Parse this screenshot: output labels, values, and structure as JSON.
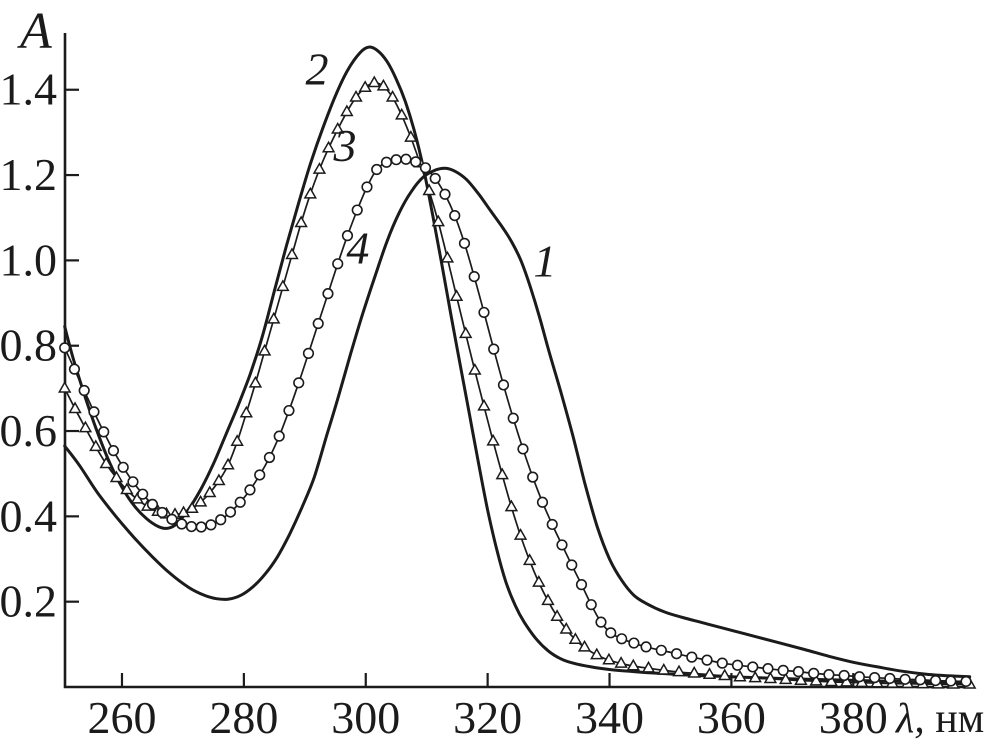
{
  "figure": {
    "background": "#ffffff",
    "ink_color": "#1b1b1b",
    "ylabel": "A",
    "xlabel_symbol": "λ,",
    "xlabel_unit": " нм"
  },
  "chart_data": {
    "type": "line",
    "title": "",
    "xlabel": "λ, нм",
    "ylabel": "A",
    "xlim": [
      250.65,
      399.15
    ],
    "ylim": [
      0,
      1.533
    ],
    "grid": false,
    "legend_position": "none (curves numbered inline)",
    "xticks": [
      260,
      280,
      300,
      320,
      340,
      360,
      380
    ],
    "xtick_labels": [
      "260",
      "280",
      "300",
      "320",
      "340",
      "360",
      "380"
    ],
    "yticks": [
      0.2,
      0.4,
      0.6,
      0.8,
      1.0,
      1.2,
      1.4
    ],
    "ytick_labels": [
      "0.2",
      "0.4",
      "0.6",
      "0.8",
      "1.0",
      "1.2",
      "1.4"
    ],
    "annotations": [
      {
        "label": "1",
        "x": 329.4,
        "y": 1.0
      },
      {
        "label": "2",
        "x": 292.0,
        "y": 1.45
      },
      {
        "label": "3",
        "x": 296.6,
        "y": 1.27
      },
      {
        "label": "4",
        "x": 298.7,
        "y": 1.03
      }
    ],
    "series": [
      {
        "name": "1",
        "style": "solid",
        "marker": "none",
        "peak": {
          "x": 313,
          "y": 1.22
        },
        "points": [
          [
            250.6,
            0.565
          ],
          [
            253,
            0.52
          ],
          [
            256,
            0.455
          ],
          [
            259,
            0.4
          ],
          [
            262,
            0.35
          ],
          [
            265,
            0.305
          ],
          [
            268,
            0.265
          ],
          [
            271,
            0.233
          ],
          [
            273.5,
            0.215
          ],
          [
            275.5,
            0.207
          ],
          [
            277.5,
            0.206
          ],
          [
            279.5,
            0.215
          ],
          [
            281.5,
            0.235
          ],
          [
            283.5,
            0.265
          ],
          [
            285.5,
            0.305
          ],
          [
            287.5,
            0.358
          ],
          [
            289.5,
            0.42
          ],
          [
            291.5,
            0.49
          ],
          [
            293.5,
            0.585
          ],
          [
            295.5,
            0.68
          ],
          [
            297.5,
            0.78
          ],
          [
            299.5,
            0.875
          ],
          [
            301.5,
            0.962
          ],
          [
            303.5,
            1.045
          ],
          [
            305.5,
            1.112
          ],
          [
            307.5,
            1.162
          ],
          [
            309.5,
            1.196
          ],
          [
            311.5,
            1.212
          ],
          [
            313,
            1.216
          ],
          [
            314.5,
            1.21
          ],
          [
            316.5,
            1.19
          ],
          [
            318.5,
            1.156
          ],
          [
            320.5,
            1.116
          ],
          [
            322.5,
            1.076
          ],
          [
            324,
            1.042
          ],
          [
            325.5,
            0.998
          ],
          [
            327,
            0.938
          ],
          [
            328.5,
            0.868
          ],
          [
            330,
            0.79
          ],
          [
            332,
            0.692
          ],
          [
            334,
            0.588
          ],
          [
            336,
            0.475
          ],
          [
            338,
            0.375
          ],
          [
            340,
            0.3
          ],
          [
            342,
            0.25
          ],
          [
            344,
            0.215
          ],
          [
            346,
            0.196
          ],
          [
            349,
            0.176
          ],
          [
            352,
            0.163
          ],
          [
            356,
            0.148
          ],
          [
            360,
            0.133
          ],
          [
            364,
            0.118
          ],
          [
            368,
            0.103
          ],
          [
            372,
            0.088
          ],
          [
            376,
            0.072
          ],
          [
            380,
            0.058
          ],
          [
            384,
            0.047
          ],
          [
            388,
            0.037
          ],
          [
            392,
            0.03
          ],
          [
            396,
            0.026
          ],
          [
            399.1,
            0.024
          ]
        ]
      },
      {
        "name": "2",
        "style": "solid",
        "marker": "none",
        "peak": {
          "x": 300.5,
          "y": 1.5
        },
        "points": [
          [
            250.6,
            0.845
          ],
          [
            252,
            0.77
          ],
          [
            254,
            0.678
          ],
          [
            256,
            0.596
          ],
          [
            258,
            0.525
          ],
          [
            260,
            0.468
          ],
          [
            262,
            0.425
          ],
          [
            264,
            0.395
          ],
          [
            266,
            0.376
          ],
          [
            267.5,
            0.372
          ],
          [
            269,
            0.383
          ],
          [
            271,
            0.418
          ],
          [
            273,
            0.465
          ],
          [
            275,
            0.523
          ],
          [
            277,
            0.59
          ],
          [
            279,
            0.658
          ],
          [
            281,
            0.732
          ],
          [
            283,
            0.82
          ],
          [
            285,
            0.928
          ],
          [
            287,
            1.035
          ],
          [
            289,
            1.135
          ],
          [
            291,
            1.23
          ],
          [
            293,
            1.312
          ],
          [
            295,
            1.385
          ],
          [
            297,
            1.445
          ],
          [
            299,
            1.486
          ],
          [
            300.5,
            1.5
          ],
          [
            302,
            1.491
          ],
          [
            303.5,
            1.466
          ],
          [
            305,
            1.425
          ],
          [
            306.5,
            1.372
          ],
          [
            308,
            1.302
          ],
          [
            309.5,
            1.214
          ],
          [
            311,
            1.105
          ],
          [
            312.5,
            0.99
          ],
          [
            314,
            0.87
          ],
          [
            315.5,
            0.755
          ],
          [
            317,
            0.64
          ],
          [
            318.5,
            0.525
          ],
          [
            320,
            0.415
          ],
          [
            321.5,
            0.322
          ],
          [
            323,
            0.246
          ],
          [
            324.5,
            0.192
          ],
          [
            326,
            0.152
          ],
          [
            328,
            0.112
          ],
          [
            330,
            0.084
          ],
          [
            332,
            0.066
          ],
          [
            334,
            0.056
          ],
          [
            337,
            0.047
          ],
          [
            340,
            0.041
          ],
          [
            344,
            0.036
          ],
          [
            348,
            0.032
          ],
          [
            353,
            0.028
          ],
          [
            358,
            0.025
          ],
          [
            364,
            0.022
          ],
          [
            370,
            0.019
          ],
          [
            376,
            0.017
          ],
          [
            382,
            0.015
          ],
          [
            388,
            0.013
          ],
          [
            394,
            0.011
          ],
          [
            399.1,
            0.01
          ]
        ]
      },
      {
        "name": "3",
        "style": "line+markers",
        "marker": "triangle",
        "peak": {
          "x": 301.5,
          "y": 1.42
        },
        "points": [
          [
            250.6,
            0.7
          ],
          [
            252.3,
            0.652
          ],
          [
            254,
            0.607
          ],
          [
            255.7,
            0.563
          ],
          [
            257.4,
            0.523
          ],
          [
            259.1,
            0.49
          ],
          [
            260.8,
            0.462
          ],
          [
            262.5,
            0.44
          ],
          [
            264.2,
            0.423
          ],
          [
            265.9,
            0.411
          ],
          [
            267.3,
            0.405
          ],
          [
            268.7,
            0.404
          ],
          [
            270.1,
            0.408
          ],
          [
            271.5,
            0.418
          ],
          [
            272.9,
            0.433
          ],
          [
            274.4,
            0.455
          ],
          [
            275.9,
            0.483
          ],
          [
            277.4,
            0.52
          ],
          [
            278.9,
            0.575
          ],
          [
            280.4,
            0.642
          ],
          [
            281.9,
            0.712
          ],
          [
            283.4,
            0.787
          ],
          [
            284.9,
            0.862
          ],
          [
            286.4,
            0.938
          ],
          [
            287.9,
            1.013
          ],
          [
            289.4,
            1.088
          ],
          [
            290.9,
            1.155
          ],
          [
            292.4,
            1.213
          ],
          [
            293.9,
            1.263
          ],
          [
            295.4,
            1.307
          ],
          [
            296.9,
            1.348
          ],
          [
            298.4,
            1.382
          ],
          [
            299.9,
            1.405
          ],
          [
            301.4,
            1.416
          ],
          [
            302.9,
            1.408
          ],
          [
            304.4,
            1.382
          ],
          [
            305.9,
            1.34
          ],
          [
            307.4,
            1.288
          ],
          [
            308.9,
            1.228
          ],
          [
            310.4,
            1.163
          ],
          [
            311.9,
            1.09
          ],
          [
            313.4,
            1.005
          ],
          [
            314.9,
            0.915
          ],
          [
            316.4,
            0.828
          ],
          [
            317.9,
            0.742
          ],
          [
            319.4,
            0.658
          ],
          [
            320.9,
            0.576
          ],
          [
            322.4,
            0.497
          ],
          [
            323.9,
            0.422
          ],
          [
            325.4,
            0.355
          ],
          [
            326.9,
            0.296
          ],
          [
            328.4,
            0.245
          ],
          [
            329.9,
            0.202
          ],
          [
            331.4,
            0.165
          ],
          [
            332.9,
            0.135
          ],
          [
            334.4,
            0.111
          ],
          [
            335.9,
            0.093
          ],
          [
            337.9,
            0.075
          ],
          [
            339.9,
            0.063
          ],
          [
            341.9,
            0.055
          ],
          [
            343.9,
            0.049
          ],
          [
            346.4,
            0.044
          ],
          [
            348.9,
            0.039
          ],
          [
            351.4,
            0.035
          ],
          [
            353.9,
            0.032
          ],
          [
            356.4,
            0.029
          ],
          [
            358.9,
            0.026
          ],
          [
            361.4,
            0.023
          ],
          [
            363.9,
            0.021
          ],
          [
            366.4,
            0.019
          ],
          [
            368.9,
            0.017
          ],
          [
            371.4,
            0.015
          ],
          [
            373.9,
            0.0135
          ],
          [
            376.4,
            0.012
          ],
          [
            378.9,
            0.011
          ],
          [
            381.4,
            0.01
          ],
          [
            383.9,
            0.009
          ],
          [
            386.4,
            0.008
          ],
          [
            388.9,
            0.0075
          ],
          [
            391.4,
            0.007
          ],
          [
            393.9,
            0.0065
          ],
          [
            396.4,
            0.006
          ],
          [
            399.1,
            0.006
          ]
        ]
      },
      {
        "name": "4",
        "style": "line+markers",
        "marker": "circle",
        "peak": {
          "x": 306,
          "y": 1.24
        },
        "points": [
          [
            250.6,
            0.795
          ],
          [
            252.2,
            0.745
          ],
          [
            253.8,
            0.695
          ],
          [
            255.4,
            0.645
          ],
          [
            257,
            0.598
          ],
          [
            258.6,
            0.554
          ],
          [
            260.2,
            0.515
          ],
          [
            261.8,
            0.481
          ],
          [
            263.4,
            0.452
          ],
          [
            265,
            0.428
          ],
          [
            266.6,
            0.409
          ],
          [
            268.2,
            0.393
          ],
          [
            269.8,
            0.382
          ],
          [
            271.4,
            0.376
          ],
          [
            273,
            0.375
          ],
          [
            274.6,
            0.38
          ],
          [
            276.2,
            0.392
          ],
          [
            277.8,
            0.41
          ],
          [
            279.4,
            0.433
          ],
          [
            281,
            0.462
          ],
          [
            282.6,
            0.497
          ],
          [
            284.2,
            0.538
          ],
          [
            285.8,
            0.588
          ],
          [
            287.4,
            0.648
          ],
          [
            289,
            0.713
          ],
          [
            290.6,
            0.782
          ],
          [
            292.2,
            0.852
          ],
          [
            293.8,
            0.922
          ],
          [
            295.4,
            0.992
          ],
          [
            297,
            1.058
          ],
          [
            298.6,
            1.118
          ],
          [
            300.2,
            1.172
          ],
          [
            301.8,
            1.213
          ],
          [
            303.4,
            1.23
          ],
          [
            305,
            1.236
          ],
          [
            306.6,
            1.237
          ],
          [
            308.2,
            1.231
          ],
          [
            309.8,
            1.217
          ],
          [
            311.4,
            1.192
          ],
          [
            313,
            1.155
          ],
          [
            314.6,
            1.105
          ],
          [
            316.2,
            1.04
          ],
          [
            317.8,
            0.962
          ],
          [
            319.4,
            0.878
          ],
          [
            321,
            0.792
          ],
          [
            322.6,
            0.708
          ],
          [
            324.2,
            0.63
          ],
          [
            325.8,
            0.558
          ],
          [
            327.4,
            0.492
          ],
          [
            329,
            0.433
          ],
          [
            330.6,
            0.381
          ],
          [
            332.2,
            0.333
          ],
          [
            333.8,
            0.286
          ],
          [
            335.4,
            0.24
          ],
          [
            337,
            0.193
          ],
          [
            338.6,
            0.152
          ],
          [
            340.2,
            0.127
          ],
          [
            342,
            0.113
          ],
          [
            344,
            0.103
          ],
          [
            346,
            0.094
          ],
          [
            348.5,
            0.086
          ],
          [
            351,
            0.078
          ],
          [
            353.5,
            0.07
          ],
          [
            356,
            0.063
          ],
          [
            358.5,
            0.056
          ],
          [
            361,
            0.051
          ],
          [
            363.5,
            0.047
          ],
          [
            366,
            0.043
          ],
          [
            368.5,
            0.039
          ],
          [
            371,
            0.036
          ],
          [
            373.5,
            0.032
          ],
          [
            376,
            0.029
          ],
          [
            378.5,
            0.027
          ],
          [
            381,
            0.024
          ],
          [
            383.5,
            0.022
          ],
          [
            386,
            0.02
          ],
          [
            388.5,
            0.018
          ],
          [
            391,
            0.017
          ],
          [
            393.5,
            0.015
          ],
          [
            396,
            0.014
          ],
          [
            398.5,
            0.013
          ]
        ]
      }
    ]
  }
}
